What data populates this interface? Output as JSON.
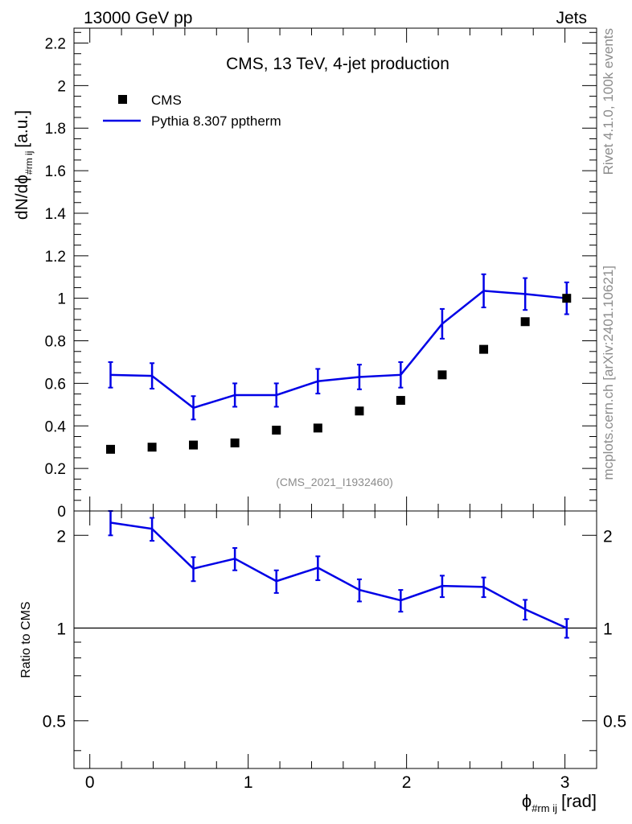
{
  "header": {
    "energy_label": "13000 GeV pp",
    "category_label": "Jets"
  },
  "side_labels": {
    "rivet_version": "Rivet 4.1.0,  100k events",
    "source": "mcplots.cern.ch [arXiv:2401.10621]"
  },
  "chart_data": [
    {
      "type": "scatter+line",
      "panel": "main",
      "title": "CMS, 13 TeV, 4-jet production",
      "analysis_id": "(CMS_2021_I1932460)",
      "ylabel": "dN/dϕ",
      "ylabel_sub": "#rm ij",
      "ylabel_unit": "[a.u.]",
      "xlim": [
        -0.1,
        3.2
      ],
      "ylim": [
        0,
        2.27
      ],
      "y_ticks": [
        0,
        0.2,
        0.4,
        0.6,
        0.8,
        1,
        1.2,
        1.4,
        1.6,
        1.8,
        2,
        2.2
      ],
      "y_tick_labels": [
        "0",
        "0.2",
        "0.4",
        "0.6",
        "0.8",
        "1",
        "1.2",
        "1.4",
        "1.6",
        "1.8",
        "2",
        "2.2"
      ],
      "legend": {
        "position": "top-left",
        "entries": [
          "CMS",
          "Pythia 8.307 pptherm"
        ]
      },
      "x": [
        0.131,
        0.393,
        0.654,
        0.916,
        1.178,
        1.44,
        1.702,
        1.963,
        2.225,
        2.487,
        2.749,
        3.011
      ],
      "series": [
        {
          "name": "CMS",
          "style": "markers",
          "color": "#000000",
          "values": [
            0.29,
            0.3,
            0.31,
            0.32,
            0.38,
            0.39,
            0.47,
            0.52,
            0.64,
            0.76,
            0.89,
            1.0
          ]
        },
        {
          "name": "Pythia 8.307 pptherm",
          "style": "line",
          "color": "#0000e6",
          "values": [
            0.64,
            0.635,
            0.485,
            0.545,
            0.545,
            0.61,
            0.63,
            0.64,
            0.88,
            1.035,
            1.02,
            1.0
          ],
          "errors": [
            0.06,
            0.06,
            0.055,
            0.055,
            0.055,
            0.058,
            0.058,
            0.06,
            0.07,
            0.078,
            0.075,
            0.075
          ]
        }
      ]
    },
    {
      "type": "line",
      "panel": "ratio",
      "ylabel": "Ratio to CMS",
      "scale": "log",
      "xlabel": "ϕ",
      "xlabel_sub": "#rm ij",
      "xlabel_unit": "[rad]",
      "xlim": [
        -0.1,
        3.2
      ],
      "ylim": [
        0.35,
        2.4
      ],
      "x_ticks": [
        0,
        1,
        2,
        3
      ],
      "x_tick_labels": [
        "0",
        "1",
        "2",
        "3"
      ],
      "y_ticks": [
        0.5,
        1,
        2
      ],
      "y_tick_labels": [
        "0.5",
        "1",
        "2"
      ],
      "reference_line": 1,
      "x": [
        0.131,
        0.393,
        0.654,
        0.916,
        1.178,
        1.44,
        1.702,
        1.963,
        2.225,
        2.487,
        2.749,
        3.011
      ],
      "series": [
        {
          "name": "Pythia 8.307 pptherm / CMS",
          "color": "#0000e6",
          "values": [
            2.2,
            2.1,
            1.56,
            1.68,
            1.42,
            1.57,
            1.33,
            1.23,
            1.37,
            1.36,
            1.15,
            1.0
          ],
          "errors_low": [
            0.2,
            0.18,
            0.14,
            0.14,
            0.12,
            0.14,
            0.11,
            0.1,
            0.11,
            0.1,
            0.085,
            0.07
          ],
          "errors_high": [
            0.2,
            0.18,
            0.14,
            0.14,
            0.12,
            0.14,
            0.11,
            0.1,
            0.11,
            0.1,
            0.085,
            0.07
          ]
        }
      ]
    }
  ]
}
